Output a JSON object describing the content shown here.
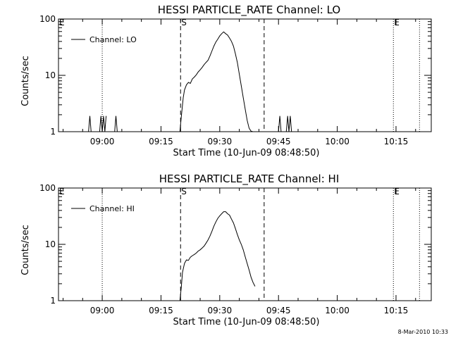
{
  "chart_data": [
    {
      "type": "line",
      "title": "HESSI PARTICLE_RATE Channel: LO",
      "xlabel": "Start Time (10-Jun-09 08:48:50)",
      "ylabel": "Counts/sec",
      "y_scale": "log",
      "ylim": [
        1,
        100
      ],
      "xlim": [
        "08:48:50",
        "10:24:00"
      ],
      "x_ticks": [
        "09:00",
        "09:15",
        "09:30",
        "09:45",
        "10:00",
        "10:15"
      ],
      "y_ticks": [
        "1",
        "10",
        "100"
      ],
      "legend": {
        "position": "top-left",
        "entries": [
          "Channel: LO"
        ]
      },
      "flag_lines": [
        {
          "label": "E",
          "time": "08:48:50",
          "style": "dotted"
        },
        {
          "label": "",
          "time": "09:00:00",
          "style": "dotted"
        },
        {
          "label": "S",
          "time": "09:20:00",
          "style": "dashed"
        },
        {
          "label": "",
          "time": "09:41:20",
          "style": "dashed"
        },
        {
          "label": "E",
          "time": "10:14:20",
          "style": "dotted"
        },
        {
          "label": "",
          "time": "10:21:00",
          "style": "dotted"
        }
      ],
      "series": [
        {
          "name": "Channel: LO",
          "segments": [
            {
              "x": [
                "08:56:30",
                "08:56:50",
                "08:57:10"
              ],
              "y": [
                1,
                1.9,
                1
              ]
            },
            {
              "x": [
                "08:59:20",
                "08:59:40",
                "09:00:00",
                "09:00:20",
                "09:00:40",
                "09:01:00"
              ],
              "y": [
                1,
                1.9,
                1,
                1.9,
                1,
                1.9
              ]
            },
            {
              "x": [
                "09:03:10",
                "09:03:30",
                "09:03:50"
              ],
              "y": [
                1,
                1.9,
                1
              ]
            },
            {
              "x": [
                "09:19:50",
                "09:20:10",
                "09:20:40",
                "09:21:00",
                "09:21:30",
                "09:22:00",
                "09:22:30",
                "09:23:00",
                "09:23:30",
                "09:24:00",
                "09:24:30",
                "09:25:00",
                "09:25:30",
                "09:26:00",
                "09:26:30",
                "09:27:00",
                "09:27:30",
                "09:28:00",
                "09:28:30",
                "09:29:00",
                "09:29:30",
                "09:30:00",
                "09:30:30",
                "09:31:00",
                "09:31:30",
                "09:32:00",
                "09:32:30",
                "09:33:00",
                "09:33:30",
                "09:34:00",
                "09:34:30",
                "09:35:00",
                "09:35:30",
                "09:36:00",
                "09:36:30",
                "09:37:00",
                "09:37:30",
                "09:38:00",
                "09:38:30",
                "09:38:50"
              ],
              "y": [
                1,
                1.8,
                4.0,
                5.5,
                6.8,
                7.5,
                7.2,
                8.6,
                9.3,
                10.2,
                11.5,
                12.5,
                13.8,
                15.5,
                17.0,
                18.5,
                22.0,
                27.0,
                33.0,
                39.0,
                44.0,
                50.0,
                55.0,
                59.0,
                55.0,
                52.0,
                46.0,
                40.0,
                33.0,
                24.0,
                17.0,
                10.5,
                6.5,
                4.0,
                2.5,
                1.6,
                1.15,
                1.02,
                1,
                1
              ]
            },
            {
              "x": [
                "09:45:00",
                "09:45:20",
                "09:45:40"
              ],
              "y": [
                1,
                1.9,
                1
              ]
            },
            {
              "x": [
                "09:47:00",
                "09:47:20",
                "09:47:40",
                "09:48:00",
                "09:48:20"
              ],
              "y": [
                1,
                1.9,
                1,
                1.9,
                1
              ]
            }
          ]
        }
      ]
    },
    {
      "type": "line",
      "title": "HESSI PARTICLE_RATE Channel: HI",
      "xlabel": "Start Time (10-Jun-09 08:48:50)",
      "ylabel": "Counts/sec",
      "y_scale": "log",
      "ylim": [
        1,
        100
      ],
      "xlim": [
        "08:48:50",
        "10:24:00"
      ],
      "x_ticks": [
        "09:00",
        "09:15",
        "09:30",
        "09:45",
        "10:00",
        "10:15"
      ],
      "y_ticks": [
        "1",
        "10",
        "100"
      ],
      "legend": {
        "position": "top-left",
        "entries": [
          "Channel: HI"
        ]
      },
      "flag_lines": [
        {
          "label": "E",
          "time": "08:48:50",
          "style": "dotted"
        },
        {
          "label": "",
          "time": "09:00:00",
          "style": "dotted"
        },
        {
          "label": "S",
          "time": "09:20:00",
          "style": "dashed"
        },
        {
          "label": "",
          "time": "09:41:20",
          "style": "dashed"
        },
        {
          "label": "E",
          "time": "10:14:20",
          "style": "dotted"
        },
        {
          "label": "",
          "time": "10:21:00",
          "style": "dotted"
        }
      ],
      "series": [
        {
          "name": "Channel: HI",
          "segments": [
            {
              "x": [
                "09:19:50",
                "09:20:10",
                "09:20:30",
                "09:21:00",
                "09:21:30",
                "09:22:00",
                "09:22:30",
                "09:23:00",
                "09:23:30",
                "09:24:00",
                "09:24:30",
                "09:25:00",
                "09:25:30",
                "09:26:00",
                "09:26:30",
                "09:27:00",
                "09:27:30",
                "09:28:00",
                "09:28:30",
                "09:29:00",
                "09:29:30",
                "09:30:00",
                "09:30:30",
                "09:31:00",
                "09:31:30",
                "09:32:00",
                "09:32:30",
                "09:33:00",
                "09:33:30",
                "09:34:00",
                "09:34:30",
                "09:35:00",
                "09:35:30",
                "09:36:00",
                "09:36:30",
                "09:37:00",
                "09:37:30",
                "09:38:00",
                "09:38:30",
                "09:39:00"
              ],
              "y": [
                1,
                1.7,
                3.2,
                4.6,
                5.3,
                5.2,
                5.9,
                6.3,
                6.6,
                7.0,
                7.6,
                8.0,
                8.6,
                9.3,
                10.5,
                12.0,
                14.0,
                17.0,
                21.0,
                25.0,
                29.0,
                32.0,
                35.0,
                38.0,
                38.0,
                35.0,
                33.0,
                28.0,
                24.0,
                19.0,
                15.0,
                12.0,
                10.0,
                8.0,
                6.0,
                4.6,
                3.5,
                2.6,
                2.1,
                1.8
              ]
            }
          ]
        }
      ]
    }
  ],
  "footer": {
    "timestamp": "8-Mar-2010 10:33"
  }
}
